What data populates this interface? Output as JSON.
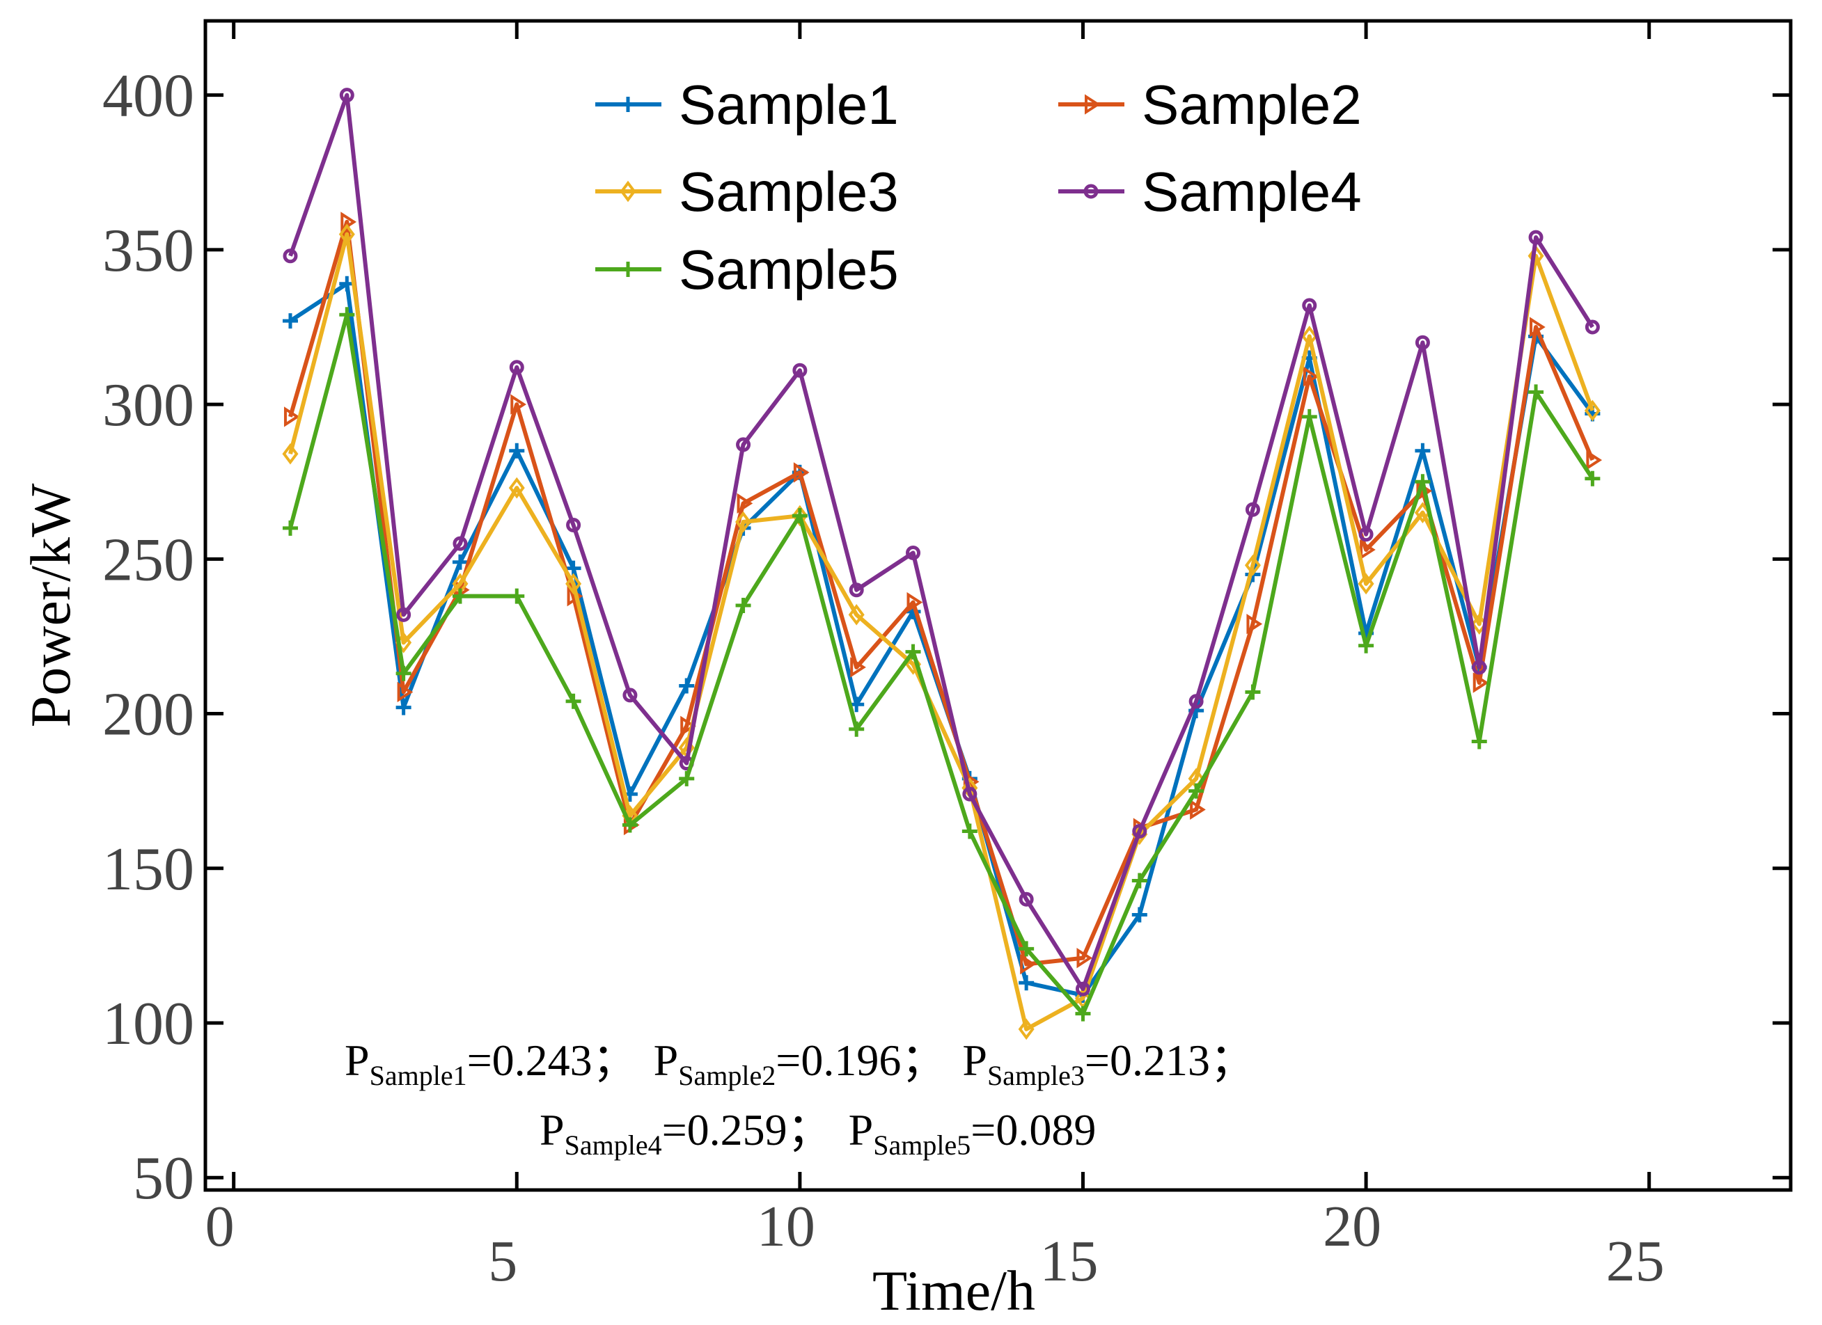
{
  "chart_data": {
    "type": "line",
    "xlabel": "Time/h",
    "ylabel": "Power/kW",
    "xlim": [
      -0.5,
      27.5
    ],
    "ylim": [
      46,
      424
    ],
    "xticks": [
      0,
      5,
      10,
      15,
      20,
      25
    ],
    "yticks": [
      50,
      100,
      150,
      200,
      250,
      300,
      350,
      400
    ],
    "legend_position": "top-center",
    "x": [
      1,
      2,
      3,
      4,
      5,
      6,
      7,
      8,
      9,
      10,
      11,
      12,
      13,
      14,
      15,
      16,
      17,
      18,
      19,
      20,
      21,
      22,
      23,
      24
    ],
    "series": [
      {
        "name": "Sample1",
        "color": "#0072BD",
        "marker": "plus",
        "values": [
          327,
          339,
          202,
          249,
          285,
          247,
          174,
          209,
          260,
          278,
          203,
          233,
          179,
          113,
          109,
          135,
          201,
          245,
          315,
          226,
          285,
          215,
          322,
          297
        ]
      },
      {
        "name": "Sample2",
        "color": "#D95319",
        "marker": "triangle-right",
        "values": [
          296,
          359,
          207,
          240,
          300,
          238,
          164,
          196,
          268,
          278,
          215,
          236,
          178,
          119,
          121,
          163,
          169,
          229,
          309,
          253,
          272,
          210,
          325,
          282
        ]
      },
      {
        "name": "Sample3",
        "color": "#EDB120",
        "marker": "diamond",
        "values": [
          284,
          355,
          223,
          242,
          273,
          242,
          167,
          189,
          262,
          264,
          232,
          216,
          176,
          98,
          108,
          161,
          179,
          248,
          322,
          242,
          265,
          229,
          348,
          298
        ]
      },
      {
        "name": "Sample4",
        "color": "#7E2F8E",
        "marker": "circle",
        "values": [
          348,
          400,
          232,
          255,
          312,
          261,
          206,
          184,
          287,
          311,
          240,
          252,
          174,
          140,
          111,
          162,
          204,
          266,
          332,
          258,
          320,
          215,
          354,
          325
        ]
      },
      {
        "name": "Sample5",
        "color": "#4DA81C",
        "marker": "plus",
        "values": [
          260,
          329,
          213,
          238,
          238,
          204,
          164,
          179,
          235,
          264,
          195,
          220,
          162,
          124,
          103,
          146,
          175,
          207,
          296,
          222,
          275,
          191,
          304,
          276
        ]
      }
    ],
    "annotations": [
      {
        "label": "P",
        "sub": "Sample1",
        "value": "=0.243；"
      },
      {
        "label": "P",
        "sub": "Sample2",
        "value": "=0.196；"
      },
      {
        "label": "P",
        "sub": "Sample3",
        "value": "=0.213；"
      },
      {
        "label": "P",
        "sub": "Sample4",
        "value": "=0.259；"
      },
      {
        "label": "P",
        "sub": "Sample5",
        "value": "=0.089"
      }
    ]
  }
}
